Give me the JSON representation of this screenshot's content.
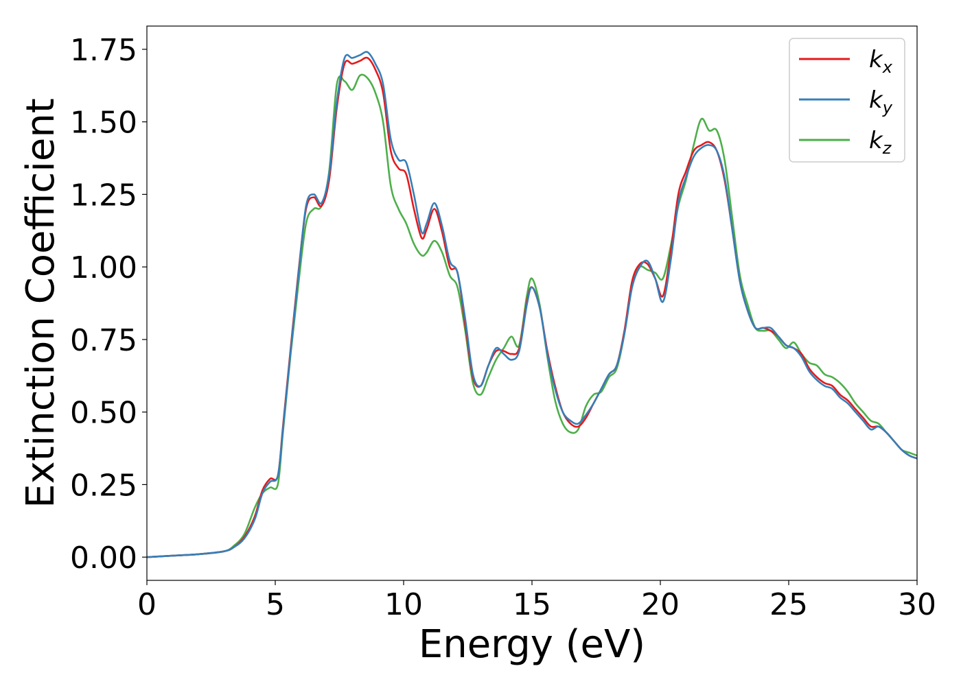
{
  "chart_data": {
    "type": "line",
    "xlabel": "Energy (eV)",
    "ylabel": "Extinction Coefficient",
    "xlim": [
      0,
      30
    ],
    "ylim": [
      -0.08,
      1.83
    ],
    "xticks": [
      0,
      5,
      10,
      15,
      20,
      25,
      30
    ],
    "xtick_labels": [
      "0",
      "5",
      "10",
      "15",
      "20",
      "25",
      "30"
    ],
    "yticks": [
      0.0,
      0.25,
      0.5,
      0.75,
      1.0,
      1.25,
      1.5,
      1.75
    ],
    "ytick_labels": [
      "0.00",
      "0.25",
      "0.50",
      "0.75",
      "1.00",
      "1.25",
      "1.50",
      "1.75"
    ],
    "grid": false,
    "legend_position": "top-right",
    "series": [
      {
        "name": "k_x",
        "label_base": "k",
        "label_sub": "x",
        "color": "#e41a1c",
        "x": [
          0,
          1,
          2,
          3,
          3.4,
          3.8,
          4.2,
          4.5,
          4.8,
          5.1,
          5.3,
          5.6,
          5.9,
          6.2,
          6.5,
          6.8,
          7.1,
          7.4,
          7.7,
          8.0,
          8.3,
          8.6,
          8.9,
          9.2,
          9.5,
          9.8,
          10.1,
          10.4,
          10.7,
          10.9,
          11.2,
          11.5,
          11.8,
          12.1,
          12.4,
          12.7,
          13.0,
          13.3,
          13.6,
          13.9,
          14.2,
          14.5,
          14.8,
          15.0,
          15.3,
          15.6,
          15.9,
          16.2,
          16.5,
          16.8,
          17.1,
          17.4,
          17.7,
          18.0,
          18.3,
          18.6,
          18.9,
          19.2,
          19.5,
          19.8,
          20.1,
          20.4,
          20.7,
          21.0,
          21.3,
          21.6,
          21.9,
          22.2,
          22.5,
          22.8,
          23.1,
          23.4,
          23.7,
          24.0,
          24.3,
          24.6,
          24.9,
          25.2,
          25.5,
          25.8,
          26.1,
          26.4,
          26.7,
          27.0,
          27.3,
          27.6,
          27.9,
          28.2,
          28.5,
          28.8,
          29.1,
          29.4,
          29.7,
          30.0
        ],
        "values": [
          0.0,
          0.005,
          0.01,
          0.02,
          0.035,
          0.07,
          0.14,
          0.23,
          0.27,
          0.28,
          0.45,
          0.72,
          0.98,
          1.2,
          1.24,
          1.21,
          1.3,
          1.55,
          1.7,
          1.7,
          1.71,
          1.72,
          1.68,
          1.6,
          1.4,
          1.34,
          1.32,
          1.2,
          1.1,
          1.13,
          1.2,
          1.12,
          1.0,
          0.98,
          0.8,
          0.62,
          0.59,
          0.66,
          0.71,
          0.71,
          0.7,
          0.72,
          0.88,
          0.93,
          0.86,
          0.71,
          0.59,
          0.5,
          0.46,
          0.45,
          0.48,
          0.53,
          0.58,
          0.63,
          0.66,
          0.78,
          0.95,
          1.01,
          1.01,
          0.96,
          0.9,
          1.05,
          1.25,
          1.33,
          1.4,
          1.42,
          1.43,
          1.4,
          1.3,
          1.13,
          0.95,
          0.85,
          0.79,
          0.79,
          0.78,
          0.76,
          0.73,
          0.72,
          0.7,
          0.65,
          0.62,
          0.6,
          0.59,
          0.56,
          0.54,
          0.51,
          0.48,
          0.45,
          0.45,
          0.43,
          0.4,
          0.37,
          0.35,
          0.34
        ]
      },
      {
        "name": "k_y",
        "label_base": "k",
        "label_sub": "y",
        "color": "#377eb8",
        "x": [
          0,
          1,
          2,
          3,
          3.4,
          3.8,
          4.2,
          4.5,
          4.8,
          5.1,
          5.3,
          5.6,
          5.9,
          6.2,
          6.5,
          6.8,
          7.1,
          7.4,
          7.7,
          8.0,
          8.3,
          8.6,
          8.9,
          9.2,
          9.5,
          9.8,
          10.1,
          10.4,
          10.7,
          10.9,
          11.2,
          11.5,
          11.8,
          12.1,
          12.4,
          12.7,
          13.0,
          13.3,
          13.6,
          13.9,
          14.2,
          14.5,
          14.8,
          15.0,
          15.3,
          15.6,
          15.9,
          16.2,
          16.5,
          16.8,
          17.1,
          17.4,
          17.7,
          18.0,
          18.3,
          18.6,
          18.9,
          19.2,
          19.5,
          19.8,
          20.1,
          20.4,
          20.7,
          21.0,
          21.3,
          21.6,
          21.9,
          22.2,
          22.5,
          22.8,
          23.1,
          23.4,
          23.7,
          24.0,
          24.3,
          24.6,
          24.9,
          25.2,
          25.5,
          25.8,
          26.1,
          26.4,
          26.7,
          27.0,
          27.3,
          27.6,
          27.9,
          28.2,
          28.5,
          28.8,
          29.1,
          29.4,
          29.7,
          30.0
        ],
        "values": [
          0.0,
          0.005,
          0.01,
          0.02,
          0.035,
          0.065,
          0.13,
          0.22,
          0.26,
          0.28,
          0.44,
          0.71,
          0.97,
          1.21,
          1.25,
          1.22,
          1.32,
          1.57,
          1.72,
          1.72,
          1.73,
          1.74,
          1.7,
          1.63,
          1.44,
          1.37,
          1.36,
          1.25,
          1.12,
          1.15,
          1.22,
          1.14,
          1.02,
          0.98,
          0.82,
          0.63,
          0.59,
          0.66,
          0.72,
          0.7,
          0.68,
          0.71,
          0.87,
          0.93,
          0.86,
          0.7,
          0.58,
          0.5,
          0.47,
          0.46,
          0.49,
          0.53,
          0.58,
          0.63,
          0.66,
          0.77,
          0.93,
          1.0,
          1.02,
          0.96,
          0.88,
          1.02,
          1.22,
          1.31,
          1.38,
          1.41,
          1.42,
          1.4,
          1.31,
          1.13,
          0.95,
          0.85,
          0.79,
          0.79,
          0.79,
          0.76,
          0.73,
          0.72,
          0.69,
          0.64,
          0.61,
          0.59,
          0.58,
          0.55,
          0.53,
          0.5,
          0.47,
          0.44,
          0.45,
          0.43,
          0.4,
          0.37,
          0.35,
          0.34
        ]
      },
      {
        "name": "k_z",
        "label_base": "k",
        "label_sub": "z",
        "color": "#4daf4a",
        "x": [
          0,
          1,
          2,
          3,
          3.4,
          3.8,
          4.2,
          4.5,
          4.8,
          5.1,
          5.3,
          5.6,
          5.9,
          6.2,
          6.5,
          6.8,
          7.1,
          7.4,
          7.7,
          8.0,
          8.3,
          8.6,
          8.9,
          9.2,
          9.5,
          9.8,
          10.1,
          10.4,
          10.7,
          10.9,
          11.2,
          11.5,
          11.8,
          12.1,
          12.4,
          12.7,
          13.0,
          13.3,
          13.6,
          13.9,
          14.2,
          14.5,
          14.8,
          15.0,
          15.3,
          15.6,
          15.9,
          16.2,
          16.5,
          16.8,
          17.1,
          17.4,
          17.7,
          18.0,
          18.3,
          18.6,
          18.9,
          19.2,
          19.5,
          19.8,
          20.1,
          20.4,
          20.7,
          21.0,
          21.3,
          21.6,
          21.9,
          22.2,
          22.5,
          22.8,
          23.1,
          23.4,
          23.7,
          24.0,
          24.3,
          24.6,
          24.9,
          25.2,
          25.5,
          25.8,
          26.1,
          26.4,
          26.7,
          27.0,
          27.3,
          27.6,
          27.9,
          28.2,
          28.5,
          28.8,
          29.1,
          29.4,
          29.7,
          30.0
        ],
        "values": [
          0.0,
          0.005,
          0.01,
          0.02,
          0.04,
          0.08,
          0.17,
          0.22,
          0.24,
          0.25,
          0.43,
          0.7,
          0.94,
          1.15,
          1.2,
          1.21,
          1.33,
          1.63,
          1.64,
          1.61,
          1.66,
          1.65,
          1.6,
          1.5,
          1.28,
          1.2,
          1.15,
          1.08,
          1.04,
          1.05,
          1.09,
          1.05,
          0.97,
          0.93,
          0.78,
          0.6,
          0.56,
          0.62,
          0.68,
          0.72,
          0.76,
          0.73,
          0.9,
          0.96,
          0.87,
          0.69,
          0.54,
          0.46,
          0.43,
          0.44,
          0.52,
          0.56,
          0.57,
          0.62,
          0.65,
          0.77,
          0.95,
          1.0,
          0.99,
          0.98,
          0.96,
          1.07,
          1.21,
          1.3,
          1.42,
          1.51,
          1.47,
          1.47,
          1.37,
          1.17,
          0.97,
          0.87,
          0.79,
          0.78,
          0.78,
          0.75,
          0.72,
          0.74,
          0.7,
          0.67,
          0.66,
          0.63,
          0.62,
          0.6,
          0.57,
          0.53,
          0.5,
          0.47,
          0.46,
          0.43,
          0.4,
          0.37,
          0.36,
          0.35
        ]
      }
    ]
  }
}
